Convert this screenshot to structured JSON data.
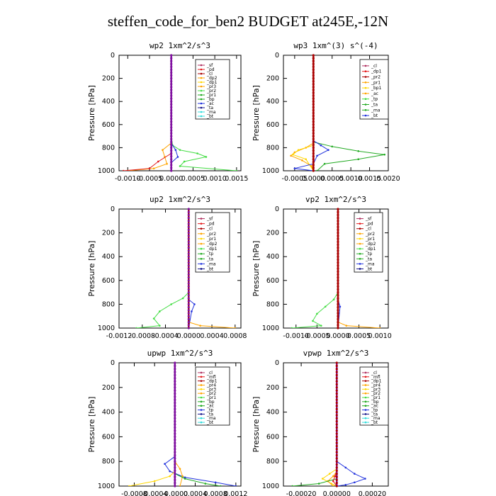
{
  "title": "steffen_code_for_ben2  BUDGET at245E,-12N",
  "colors": {
    "maroon": "#b03060",
    "red": "#e41a1c",
    "orange": "#ffa500",
    "green": "#22aa22",
    "lime": "#44dd44",
    "blue": "#2233dd",
    "navy": "#111188",
    "cyan": "#33dddd",
    "purple": "#7f0f9f",
    "yellow": "#ffd700",
    "darkred": "#aa0000"
  },
  "chart_data": [
    {
      "type": "line",
      "title": "wp2  1xm^2/s^3",
      "ylabel": "Pressure [hPa]",
      "ylim": [
        1000,
        0
      ],
      "xlim": [
        -0.0012,
        0.0016
      ],
      "xticks": [
        -0.001,
        -0.0005,
        0,
        0.0005,
        0.001,
        0.0015
      ],
      "xtick_labels": [
        "-0.0010",
        "-0.0005",
        "0.0000",
        "0.0005",
        "0.0010",
        "0.0015"
      ],
      "yticks": [
        0,
        200,
        400,
        600,
        800,
        1000
      ],
      "legend": [
        "_sf",
        "_pd",
        "_cl",
        "_dp2",
        "_dp1",
        "_pr3",
        "_pr2",
        "_pr1",
        "_bp",
        "_ac",
        "_ta",
        "_ma",
        "_bt"
      ],
      "series": [
        {
          "color": "lime",
          "points": [
            [
              0,
              0
            ],
            [
              0,
              700
            ],
            [
              3e-05,
              780
            ],
            [
              0.0002,
              820
            ],
            [
              0.0006,
              850
            ],
            [
              0.0008,
              880
            ],
            [
              0.0003,
              920
            ],
            [
              0.0002,
              960
            ],
            [
              0.0015,
              1000
            ]
          ]
        },
        {
          "color": "orange",
          "points": [
            [
              0,
              0
            ],
            [
              0,
              760
            ],
            [
              -0.0002,
              820
            ],
            [
              -0.00015,
              880
            ],
            [
              -0.0001,
              940
            ],
            [
              -0.0004,
              980
            ],
            [
              -0.001,
              1000
            ]
          ]
        },
        {
          "color": "blue",
          "points": [
            [
              0,
              0
            ],
            [
              0,
              760
            ],
            [
              0.0001,
              820
            ],
            [
              0.00015,
              880
            ],
            [
              0,
              930
            ],
            [
              0,
              1000
            ]
          ]
        },
        {
          "color": "red",
          "points": [
            [
              0,
              0
            ],
            [
              0,
              850
            ],
            [
              -0.0003,
              920
            ],
            [
              -0.0005,
              980
            ],
            [
              -0.0011,
              1000
            ]
          ]
        },
        {
          "color": "purple",
          "points": [
            [
              0,
              0
            ],
            [
              0,
              1000
            ]
          ]
        }
      ]
    },
    {
      "type": "line",
      "title": "wp3  1xm^(3) s^(-4)",
      "ylabel": "Pressure [hPa]",
      "ylim": [
        1000,
        0
      ],
      "xlim": [
        -0.0008,
        0.002
      ],
      "xticks": [
        -0.0005,
        0,
        0.0005,
        0.001,
        0.0015,
        0.002
      ],
      "xtick_labels": [
        "-0.0005",
        "0.0000",
        "0.0005",
        "0.0010",
        "0.0015",
        "0.0020"
      ],
      "yticks": [
        0,
        200,
        400,
        600,
        800,
        1000
      ],
      "legend": [
        "_cl",
        "_dp1",
        "_pr2",
        "_pr1",
        "_bp1",
        "_ac",
        "_tp",
        "_ta",
        "_ma",
        "_bt"
      ],
      "series": [
        {
          "color": "green",
          "points": [
            [
              0,
              0
            ],
            [
              0,
              750
            ],
            [
              0.0005,
              790
            ],
            [
              0.0012,
              830
            ],
            [
              0.0019,
              860
            ],
            [
              0.0012,
              900
            ],
            [
              0.0003,
              940
            ],
            [
              0.0001,
              1000
            ]
          ]
        },
        {
          "color": "orange",
          "points": [
            [
              0,
              0
            ],
            [
              0,
              760
            ],
            [
              -0.0002,
              800
            ],
            [
              -0.0005,
              840
            ],
            [
              -0.0006,
              870
            ],
            [
              -0.0003,
              910
            ],
            [
              -5e-05,
              960
            ],
            [
              0,
              1000
            ]
          ]
        },
        {
          "color": "yellow",
          "points": [
            [
              0,
              0
            ],
            [
              0,
              780
            ],
            [
              -0.0004,
              820
            ],
            [
              -0.00055,
              860
            ],
            [
              -0.0002,
              900
            ],
            [
              0,
              1000
            ]
          ]
        },
        {
          "color": "blue",
          "points": [
            [
              0,
              0
            ],
            [
              0,
              740
            ],
            [
              0.0002,
              780
            ],
            [
              0.0004,
              820
            ],
            [
              0.0001,
              870
            ],
            [
              0,
              940
            ],
            [
              -0.0005,
              980
            ],
            [
              0,
              1000
            ]
          ]
        },
        {
          "color": "darkred",
          "points": [
            [
              0,
              0
            ],
            [
              0,
              1000
            ]
          ]
        }
      ]
    },
    {
      "type": "line",
      "title": "up2  1xm^2/s^3",
      "ylabel": "Pressure [hPa]",
      "ylim": [
        1000,
        0
      ],
      "xlim": [
        -0.0012,
        0.0009
      ],
      "xticks": [
        -0.0012,
        -0.0008,
        -0.0004,
        0,
        0.0004,
        0.0008
      ],
      "xtick_labels": [
        "-0.0012",
        "-0.0008",
        "-0.0004",
        "0.0000",
        "0.0004",
        "0.0008"
      ],
      "yticks": [
        0,
        200,
        400,
        600,
        800,
        1000
      ],
      "legend": [
        "_sf",
        "_pd",
        "_cl",
        "_pr2",
        "_pr1",
        "_dp2",
        "_dp1",
        "_tp",
        "_ta",
        "_ma",
        "_bt"
      ],
      "series": [
        {
          "color": "lime",
          "points": [
            [
              0,
              0
            ],
            [
              0,
              700
            ],
            [
              -0.0001,
              750
            ],
            [
              -0.0003,
              800
            ],
            [
              -0.0005,
              860
            ],
            [
              -0.0006,
              920
            ],
            [
              -0.0005,
              980
            ],
            [
              -0.0009,
              1000
            ]
          ]
        },
        {
          "color": "blue",
          "points": [
            [
              0,
              0
            ],
            [
              0,
              760
            ],
            [
              0.0001,
              800
            ],
            [
              5e-05,
              860
            ],
            [
              0,
              1000
            ]
          ]
        },
        {
          "color": "orange",
          "points": [
            [
              0,
              0
            ],
            [
              0,
              950
            ],
            [
              0.0002,
              980
            ],
            [
              0.0008,
              1000
            ]
          ]
        },
        {
          "color": "darkred",
          "points": [
            [
              0,
              0
            ],
            [
              0,
              1000
            ]
          ]
        }
      ]
    },
    {
      "type": "line",
      "title": "vp2  1xm^2/s^3",
      "ylabel": "Pressure [hPa]",
      "ylim": [
        1000,
        0
      ],
      "xlim": [
        -0.0013,
        0.0012
      ],
      "xticks": [
        -0.001,
        -0.0005,
        0,
        0.0005,
        0.001
      ],
      "xtick_labels": [
        "-0.0010",
        "-0.0005",
        "0.0000",
        "0.0005",
        "0.0010"
      ],
      "yticks": [
        0,
        200,
        400,
        600,
        800,
        1000
      ],
      "legend": [
        "_sf",
        "_pd",
        "_cl",
        "_pr2",
        "_pr1",
        "_dp2",
        "_dp1",
        "_tp",
        "_ta",
        "_ma",
        "_bt"
      ],
      "series": [
        {
          "color": "lime",
          "points": [
            [
              0,
              0
            ],
            [
              0,
              700
            ],
            [
              -0.0001,
              760
            ],
            [
              -0.0003,
              820
            ],
            [
              -0.0005,
              880
            ],
            [
              -0.0006,
              940
            ],
            [
              -0.0004,
              980
            ],
            [
              -0.0011,
              1000
            ]
          ]
        },
        {
          "color": "blue",
          "points": [
            [
              0,
              0
            ],
            [
              0,
              760
            ],
            [
              5e-05,
              820
            ],
            [
              0,
              1000
            ]
          ]
        },
        {
          "color": "orange",
          "points": [
            [
              0,
              0
            ],
            [
              0,
              950
            ],
            [
              0.0002,
              980
            ],
            [
              0.001,
              1000
            ]
          ]
        },
        {
          "color": "darkred",
          "points": [
            [
              0,
              0
            ],
            [
              0,
              1000
            ]
          ]
        }
      ]
    },
    {
      "type": "line",
      "title": "upwp  1xm^2/s^3",
      "ylabel": "Pressure [hPa]",
      "ylim": [
        1000,
        0
      ],
      "xlim": [
        -0.0011,
        0.0013
      ],
      "xticks": [
        -0.0008,
        -0.0004,
        0,
        0.0004,
        0.0008,
        0.0012
      ],
      "xtick_labels": [
        "-0.0008",
        "-0.0004",
        "-0.0000",
        "0.0004",
        "0.0008",
        "0.0012"
      ],
      "yticks": [
        0,
        200,
        400,
        600,
        800,
        1000
      ],
      "legend": [
        "_cl",
        "_mfl",
        "_dp1",
        "_pr4",
        "_pr3",
        "_pr2",
        "_pr1",
        "_bp",
        "_ac",
        "_tp",
        "_ta",
        "_ma",
        "_bt"
      ],
      "series": [
        {
          "color": "blue",
          "points": [
            [
              0,
              0
            ],
            [
              0,
              760
            ],
            [
              -0.0002,
              820
            ],
            [
              -0.0001,
              880
            ],
            [
              0.0002,
              930
            ],
            [
              0.0008,
              970
            ],
            [
              0.0012,
              1000
            ]
          ]
        },
        {
          "color": "yellow",
          "points": [
            [
              0,
              0
            ],
            [
              0,
              880
            ],
            [
              -0.0001,
              920
            ],
            [
              -0.0004,
              960
            ],
            [
              -0.0009,
              1000
            ]
          ]
        },
        {
          "color": "orange",
          "points": [
            [
              0,
              0
            ],
            [
              0,
              800
            ],
            [
              0.0001,
              860
            ],
            [
              0.00015,
              920
            ],
            [
              0.0001,
              1000
            ]
          ]
        },
        {
          "color": "green",
          "points": [
            [
              0,
              0
            ],
            [
              0,
              900
            ],
            [
              0.0002,
              940
            ],
            [
              0.0006,
              980
            ],
            [
              0.0009,
              1000
            ]
          ]
        },
        {
          "color": "purple",
          "points": [
            [
              0,
              0
            ],
            [
              0,
              1000
            ]
          ]
        }
      ]
    },
    {
      "type": "line",
      "title": "vpwp  1xm^2/s^3",
      "ylabel": "Pressure [hPa]",
      "ylim": [
        1000,
        0
      ],
      "xlim": [
        -0.0003,
        0.00029
      ],
      "xticks": [
        -0.0002,
        0,
        0.0002
      ],
      "xtick_labels": [
        "-0.00020",
        "0.00000",
        "0.00020"
      ],
      "yticks": [
        0,
        200,
        400,
        600,
        800,
        1000
      ],
      "legend": [
        "_cl",
        "_mfl",
        "_dp1",
        "_pr4",
        "_pr3",
        "_pr2",
        "_pr1",
        "_bp",
        "_ac",
        "_tp",
        "_ta",
        "_ma",
        "_bt"
      ],
      "series": [
        {
          "color": "blue",
          "points": [
            [
              0,
              0
            ],
            [
              0,
              800
            ],
            [
              5e-05,
              850
            ],
            [
              0.0001,
              900
            ],
            [
              0.00016,
              940
            ],
            [
              0.0001,
              970
            ],
            [
              5e-05,
              990
            ],
            [
              0,
              1000
            ]
          ]
        },
        {
          "color": "yellow",
          "points": [
            [
              0,
              0
            ],
            [
              0,
              860
            ],
            [
              -4e-05,
              900
            ],
            [
              -8e-05,
              940
            ],
            [
              -3e-05,
              980
            ],
            [
              0,
              1000
            ]
          ]
        },
        {
          "color": "orange",
          "points": [
            [
              0,
              0
            ],
            [
              0,
              880
            ],
            [
              -2e-05,
              920
            ],
            [
              -5e-05,
              960
            ],
            [
              -2e-05,
              1000
            ]
          ]
        },
        {
          "color": "green",
          "points": [
            [
              0,
              0
            ],
            [
              0,
              940
            ],
            [
              -0.0001,
              980
            ],
            [
              -0.00025,
              1000
            ]
          ]
        },
        {
          "color": "red",
          "points": [
            [
              0,
              0
            ],
            [
              0,
              880
            ],
            [
              -1e-05,
              920
            ],
            [
              -2e-05,
              960
            ],
            [
              0,
              1000
            ]
          ]
        },
        {
          "color": "purple",
          "points": [
            [
              0,
              0
            ],
            [
              0,
              1000
            ]
          ]
        }
      ]
    }
  ]
}
